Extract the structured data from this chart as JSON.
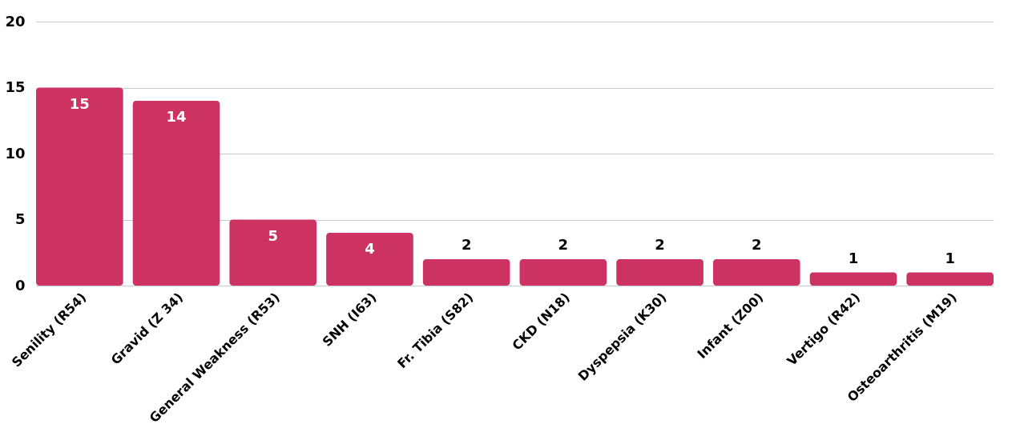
{
  "chart_data": {
    "type": "bar",
    "categories": [
      "Senility (R54)",
      "Gravid (Z 34)",
      "General Weakness (R53)",
      "SNH (I63)",
      "Fr. Tibia (S82)",
      "CKD (N18)",
      "Dyspepsia (K30)",
      "Infant (Z00)",
      "Vertigo (R42)",
      "Osteoarthritis (M19)"
    ],
    "values": [
      15,
      14,
      5,
      4,
      2,
      2,
      2,
      2,
      1,
      1
    ],
    "color": "#cc3262",
    "ylim": [
      0,
      20
    ],
    "yticks": [
      0,
      5,
      10,
      15,
      20
    ],
    "grid": "y",
    "data_labels": true
  }
}
